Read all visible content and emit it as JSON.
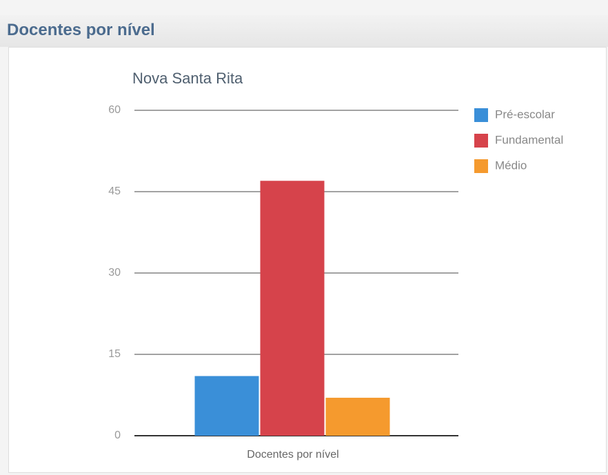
{
  "header": "Docentes por nível",
  "chart_data": {
    "type": "bar",
    "title": "Nova Santa Rita",
    "categories": [
      "Docentes por nível"
    ],
    "series": [
      {
        "name": "Pré-escolar",
        "color": "#3a8fd8",
        "values": [
          11
        ]
      },
      {
        "name": "Fundamental",
        "color": "#d6434b",
        "values": [
          47
        ]
      },
      {
        "name": "Médio",
        "color": "#f59a2e",
        "values": [
          7
        ]
      }
    ],
    "ylim": [
      0,
      60
    ],
    "yticks": [
      0,
      15,
      30,
      45,
      60
    ],
    "grid": true,
    "legend": "right"
  }
}
